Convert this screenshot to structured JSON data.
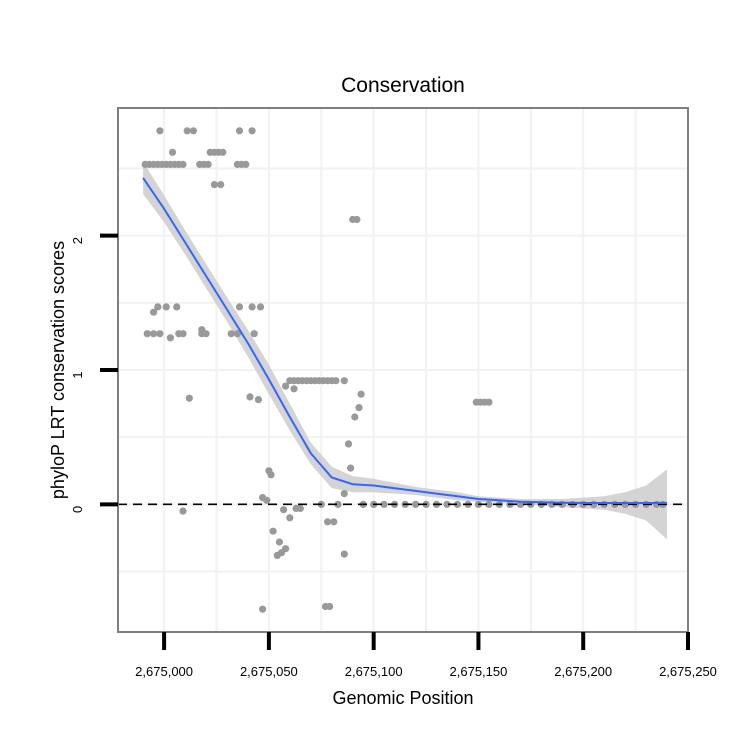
{
  "chart_data": {
    "type": "scatter",
    "title": "Conservation",
    "xlabel": "Genomic Position",
    "ylabel": "phyloP LRT conservation scores",
    "xlim": [
      2674978,
      2675250
    ],
    "ylim": [
      -0.95,
      2.95
    ],
    "x_ticks": [
      2675000,
      2675050,
      2675100,
      2675150,
      2675200,
      2675250
    ],
    "x_tick_labels": [
      "2,675,000",
      "2,675,050",
      "2,675,100",
      "2,675,150",
      "2,675,200",
      "2,675,250"
    ],
    "y_ticks": [
      0,
      1,
      2
    ],
    "y_tick_labels": [
      "0",
      "1",
      "2"
    ],
    "grid": true,
    "reference_line": {
      "y": 0,
      "style": "dashed"
    },
    "colors": {
      "points": "#999999",
      "smooth_line": "#3366FF",
      "confidence_band": "#CCCCCC",
      "panel_border": "#7F7F7F",
      "grid": "#F2F2F2"
    },
    "series": [
      {
        "name": "phyloP scores",
        "type": "scatter",
        "points": [
          [
            2674991,
            2.53
          ],
          [
            2674993,
            2.53
          ],
          [
            2674995,
            2.53
          ],
          [
            2674997,
            2.53
          ],
          [
            2674999,
            2.53
          ],
          [
            2675001,
            2.53
          ],
          [
            2675003,
            2.53
          ],
          [
            2675005,
            2.53
          ],
          [
            2675007,
            2.53
          ],
          [
            2675009,
            2.53
          ],
          [
            2675017,
            2.53
          ],
          [
            2675019,
            2.53
          ],
          [
            2675021,
            2.53
          ],
          [
            2675035,
            2.53
          ],
          [
            2675037,
            2.53
          ],
          [
            2675039,
            2.53
          ],
          [
            2674998,
            2.78
          ],
          [
            2675011,
            2.78
          ],
          [
            2675014,
            2.78
          ],
          [
            2675036,
            2.78
          ],
          [
            2675042,
            2.78
          ],
          [
            2675004,
            2.62
          ],
          [
            2675022,
            2.62
          ],
          [
            2675024,
            2.62
          ],
          [
            2675026,
            2.62
          ],
          [
            2675028,
            2.62
          ],
          [
            2675024,
            2.38
          ],
          [
            2675027,
            2.38
          ],
          [
            2675090,
            2.12
          ],
          [
            2675092,
            2.12
          ],
          [
            2674992,
            1.27
          ],
          [
            2674995,
            1.27
          ],
          [
            2674998,
            1.27
          ],
          [
            2675007,
            1.27
          ],
          [
            2675009,
            1.27
          ],
          [
            2675018,
            1.27
          ],
          [
            2675020,
            1.27
          ],
          [
            2675032,
            1.27
          ],
          [
            2675035,
            1.27
          ],
          [
            2675043,
            1.27
          ],
          [
            2674995,
            1.43
          ],
          [
            2674997,
            1.47
          ],
          [
            2675001,
            1.47
          ],
          [
            2675006,
            1.47
          ],
          [
            2675003,
            1.24
          ],
          [
            2675018,
            1.3
          ],
          [
            2675036,
            1.47
          ],
          [
            2675042,
            1.47
          ],
          [
            2675046,
            1.47
          ],
          [
            2675012,
            0.79
          ],
          [
            2675041,
            0.8
          ],
          [
            2675045,
            0.78
          ],
          [
            2675009,
            -0.05
          ],
          [
            2675050,
            0.25
          ],
          [
            2675051,
            0.22
          ],
          [
            2675047,
            0.05
          ],
          [
            2675049,
            0.03
          ],
          [
            2675052,
            -0.2
          ],
          [
            2675055,
            -0.28
          ],
          [
            2675054,
            -0.38
          ],
          [
            2675056,
            -0.36
          ],
          [
            2675058,
            -0.33
          ],
          [
            2675057,
            -0.04
          ],
          [
            2675060,
            -0.1
          ],
          [
            2675063,
            -0.03
          ],
          [
            2675065,
            -0.03
          ],
          [
            2675047,
            -0.78
          ],
          [
            2675077,
            -0.76
          ],
          [
            2675079,
            -0.76
          ],
          [
            2675058,
            0.88
          ],
          [
            2675060,
            0.92
          ],
          [
            2675062,
            0.92
          ],
          [
            2675064,
            0.92
          ],
          [
            2675066,
            0.92
          ],
          [
            2675068,
            0.92
          ],
          [
            2675070,
            0.92
          ],
          [
            2675072,
            0.92
          ],
          [
            2675074,
            0.92
          ],
          [
            2675076,
            0.92
          ],
          [
            2675078,
            0.92
          ],
          [
            2675080,
            0.92
          ],
          [
            2675082,
            0.92
          ],
          [
            2675086,
            0.92
          ],
          [
            2675062,
            0.86
          ],
          [
            2675086,
            0.08
          ],
          [
            2675088,
            0.45
          ],
          [
            2675089,
            0.27
          ],
          [
            2675091,
            0.65
          ],
          [
            2675093,
            0.72
          ],
          [
            2675094,
            0.82
          ],
          [
            2675075,
            0.0
          ],
          [
            2675078,
            -0.13
          ],
          [
            2675081,
            -0.13
          ],
          [
            2675083,
            0.0
          ],
          [
            2675086,
            -0.37
          ],
          [
            2675095,
            0.0
          ],
          [
            2675100,
            0.0
          ],
          [
            2675105,
            0.0
          ],
          [
            2675110,
            0.0
          ],
          [
            2675115,
            0.0
          ],
          [
            2675120,
            0.0
          ],
          [
            2675125,
            0.0
          ],
          [
            2675130,
            0.0
          ],
          [
            2675135,
            0.0
          ],
          [
            2675140,
            0.0
          ],
          [
            2675145,
            0.0
          ],
          [
            2675150,
            0.0
          ],
          [
            2675155,
            0.0
          ],
          [
            2675160,
            0.0
          ],
          [
            2675165,
            0.0
          ],
          [
            2675170,
            0.0
          ],
          [
            2675175,
            0.0
          ],
          [
            2675180,
            0.0
          ],
          [
            2675185,
            0.0
          ],
          [
            2675190,
            0.0
          ],
          [
            2675195,
            0.0
          ],
          [
            2675200,
            0.0
          ],
          [
            2675205,
            0.0
          ],
          [
            2675210,
            0.0
          ],
          [
            2675215,
            0.0
          ],
          [
            2675220,
            0.0
          ],
          [
            2675225,
            0.0
          ],
          [
            2675230,
            0.0
          ],
          [
            2675235,
            0.0
          ],
          [
            2675238,
            0.0
          ],
          [
            2675149,
            0.76
          ],
          [
            2675151,
            0.76
          ],
          [
            2675153,
            0.76
          ],
          [
            2675155,
            0.76
          ]
        ]
      },
      {
        "name": "loess smooth",
        "type": "line",
        "x": [
          2674990,
          2675000,
          2675010,
          2675020,
          2675030,
          2675040,
          2675050,
          2675060,
          2675070,
          2675080,
          2675090,
          2675100,
          2675110,
          2675120,
          2675130,
          2675140,
          2675150,
          2675160,
          2675170,
          2675180,
          2675190,
          2675200,
          2675210,
          2675220,
          2675230,
          2675240
        ],
        "y": [
          2.43,
          2.2,
          1.95,
          1.7,
          1.45,
          1.2,
          0.93,
          0.65,
          0.38,
          0.2,
          0.15,
          0.14,
          0.12,
          0.1,
          0.08,
          0.06,
          0.04,
          0.03,
          0.02,
          0.015,
          0.012,
          0.01,
          0.01,
          0.01,
          0.01,
          0.01
        ],
        "lower": [
          2.31,
          2.1,
          1.86,
          1.61,
          1.36,
          1.1,
          0.82,
          0.55,
          0.3,
          0.12,
          0.09,
          0.09,
          0.08,
          0.07,
          0.05,
          0.03,
          0.02,
          0.01,
          0.0,
          -0.01,
          -0.02,
          -0.03,
          -0.04,
          -0.07,
          -0.12,
          -0.26
        ],
        "upper": [
          2.55,
          2.3,
          2.04,
          1.79,
          1.54,
          1.3,
          1.04,
          0.75,
          0.46,
          0.28,
          0.21,
          0.19,
          0.16,
          0.13,
          0.11,
          0.09,
          0.06,
          0.05,
          0.04,
          0.04,
          0.04,
          0.05,
          0.06,
          0.09,
          0.14,
          0.26
        ]
      }
    ]
  }
}
